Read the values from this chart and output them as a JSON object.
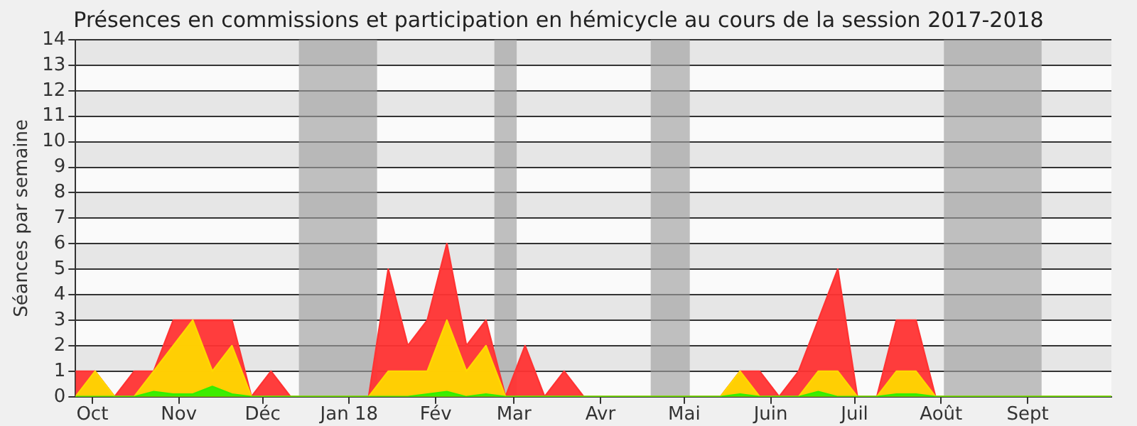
{
  "chart_data": {
    "type": "area",
    "title": "Présences en commissions et participation en hémicycle au cours de la session 2017-2018",
    "ylabel": "Séances par semaine",
    "x": [
      "2017-09-25",
      "2017-10-02",
      "2017-10-09",
      "2017-10-16",
      "2017-10-23",
      "2017-10-30",
      "2017-11-06",
      "2017-11-13",
      "2017-11-20",
      "2017-11-27",
      "2017-12-04",
      "2017-12-11",
      "2017-12-18",
      "2017-12-25",
      "2018-01-01",
      "2018-01-08",
      "2018-01-15",
      "2018-01-22",
      "2018-01-29",
      "2018-02-05",
      "2018-02-12",
      "2018-02-19",
      "2018-02-26",
      "2018-03-05",
      "2018-03-12",
      "2018-03-19",
      "2018-03-26",
      "2018-04-02",
      "2018-04-09",
      "2018-04-16",
      "2018-04-23",
      "2018-04-30",
      "2018-05-07",
      "2018-05-14",
      "2018-05-21",
      "2018-05-28",
      "2018-06-04",
      "2018-06-11",
      "2018-06-18",
      "2018-06-25",
      "2018-07-02",
      "2018-07-09",
      "2018-07-16",
      "2018-07-23",
      "2018-07-30",
      "2018-08-06",
      "2018-08-13",
      "2018-08-20",
      "2018-08-27",
      "2018-09-03",
      "2018-09-10",
      "2018-09-17",
      "2018-09-24",
      "2018-10-01"
    ],
    "series": [
      {
        "color": "#ff3333",
        "values": [
          1,
          1,
          0,
          1,
          1,
          3,
          3,
          3,
          3,
          0,
          1,
          0,
          0,
          0,
          0,
          0,
          5,
          2,
          3,
          6,
          2,
          3,
          0,
          2,
          0,
          1,
          0,
          0,
          0,
          0,
          0,
          0,
          0,
          0,
          1,
          1,
          0,
          1,
          3,
          5,
          0,
          0,
          3,
          3,
          0,
          0,
          0,
          0,
          0,
          0,
          0,
          0,
          0,
          0
        ]
      },
      {
        "color": "#ffd700",
        "values": [
          0,
          1,
          0,
          0,
          1,
          2,
          3,
          1,
          2,
          0,
          0,
          0,
          0,
          0,
          0,
          0,
          1,
          1,
          1,
          3,
          1,
          2,
          0,
          0,
          0,
          0,
          0,
          0,
          0,
          0,
          0,
          0,
          0,
          0,
          1,
          0,
          0,
          0,
          1,
          1,
          0,
          0,
          1,
          1,
          0,
          0,
          0,
          0,
          0,
          0,
          0,
          0,
          0,
          0
        ]
      },
      {
        "color": "#33ee00",
        "values": [
          0,
          0,
          0,
          0,
          0.2,
          0.1,
          0.1,
          0.4,
          0.1,
          0,
          0,
          0,
          0,
          0,
          0,
          0,
          0,
          0,
          0.1,
          0.2,
          0,
          0.1,
          0,
          0,
          0,
          0,
          0,
          0,
          0,
          0,
          0,
          0,
          0,
          0,
          0.1,
          0,
          0,
          0,
          0.2,
          0,
          0,
          0,
          0.1,
          0.1,
          0,
          0,
          0,
          0,
          0,
          0,
          0,
          0,
          0,
          0
        ]
      }
    ],
    "xlim": [
      "2017-09-25",
      "2018-10-01"
    ],
    "xticks": [
      {
        "value": "2017-10-01",
        "label": "Oct"
      },
      {
        "value": "2017-11-01",
        "label": "Nov"
      },
      {
        "value": "2017-12-01",
        "label": "Déc"
      },
      {
        "value": "2018-01-01",
        "label": "Jan 18"
      },
      {
        "value": "2018-02-01",
        "label": "Fév"
      },
      {
        "value": "2018-03-01",
        "label": "Mar"
      },
      {
        "value": "2018-04-01",
        "label": "Avr"
      },
      {
        "value": "2018-05-01",
        "label": "Mai"
      },
      {
        "value": "2018-06-01",
        "label": "Juin"
      },
      {
        "value": "2018-07-01",
        "label": "Juil"
      },
      {
        "value": "2018-08-01",
        "label": "Août"
      },
      {
        "value": "2018-09-01",
        "label": "Sept"
      }
    ],
    "ylim": [
      0,
      14
    ],
    "yticks": [
      0,
      1,
      2,
      3,
      4,
      5,
      6,
      7,
      8,
      9,
      10,
      11,
      12,
      13,
      14
    ],
    "bands": [
      {
        "axis": "x",
        "from": "2017-12-14",
        "to": "2018-01-11",
        "color": "#a0a0a0"
      },
      {
        "axis": "x",
        "from": "2018-02-22",
        "to": "2018-03-02",
        "color": "#a0a0a0"
      },
      {
        "axis": "x",
        "from": "2018-04-19",
        "to": "2018-05-03",
        "color": "#a0a0a0"
      },
      {
        "axis": "x",
        "from": "2018-08-02",
        "to": "2018-09-06",
        "color": "#a0a0a0"
      }
    ],
    "grid": "y"
  }
}
